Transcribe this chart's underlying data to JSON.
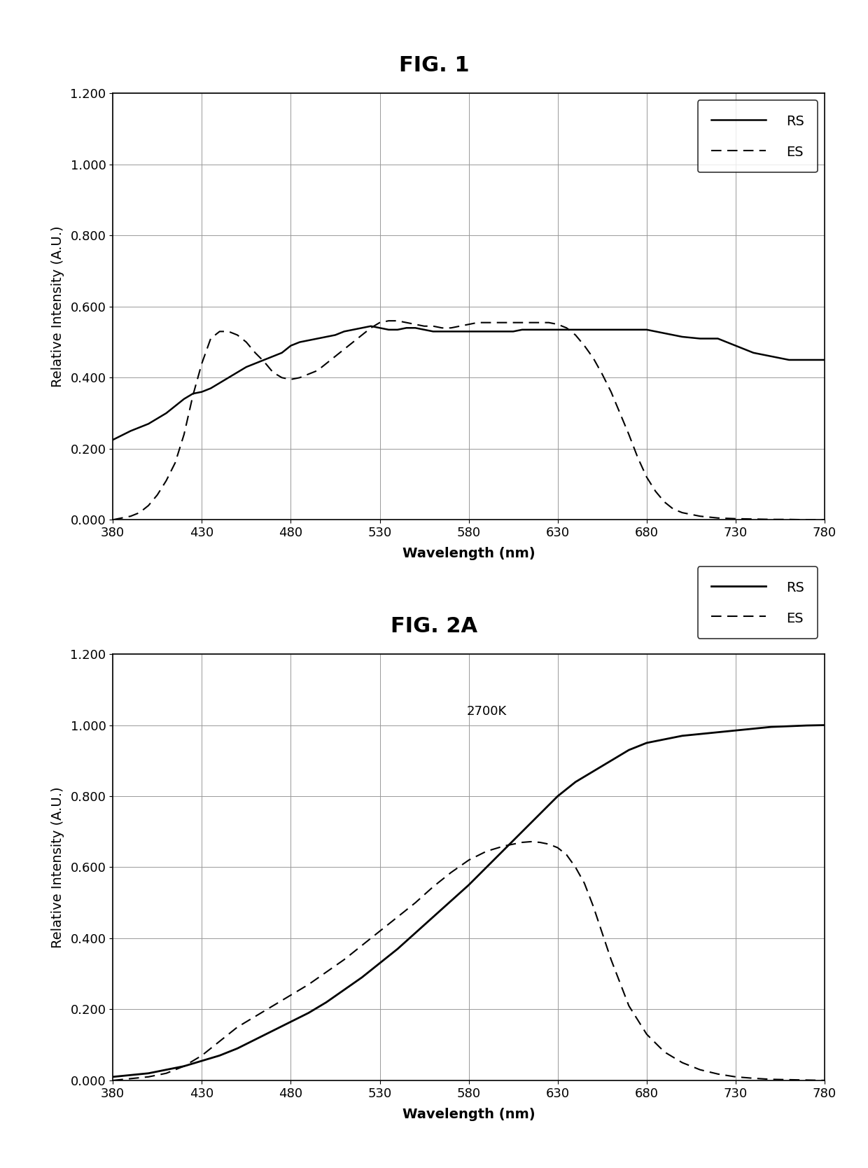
{
  "fig1_title": "FIG. 1",
  "fig2_title": "FIG. 2A",
  "xlabel": "Wavelength (nm)",
  "ylabel": "Relative Intensity (A.U.)",
  "xlim": [
    380,
    780
  ],
  "ylim": [
    0.0,
    1.2
  ],
  "xticks": [
    380,
    430,
    480,
    530,
    580,
    630,
    680,
    730,
    780
  ],
  "yticks": [
    0.0,
    0.2,
    0.4,
    0.6,
    0.8,
    1.0,
    1.2
  ],
  "ytick_labels": [
    "0.000",
    "0.200",
    "0.400",
    "0.600",
    "0.800",
    "1.000",
    "1.200"
  ],
  "fig2_annotation": "2700K",
  "fig1_RS_x": [
    380,
    390,
    400,
    410,
    415,
    420,
    425,
    430,
    435,
    440,
    445,
    450,
    455,
    460,
    465,
    470,
    475,
    480,
    485,
    490,
    495,
    500,
    505,
    510,
    515,
    520,
    525,
    530,
    535,
    540,
    545,
    550,
    555,
    560,
    565,
    570,
    575,
    580,
    585,
    590,
    595,
    600,
    605,
    610,
    615,
    620,
    625,
    630,
    635,
    640,
    645,
    650,
    655,
    660,
    665,
    670,
    675,
    680,
    685,
    690,
    695,
    700,
    710,
    720,
    730,
    735,
    740,
    750,
    760,
    770,
    780
  ],
  "fig1_RS_y": [
    0.225,
    0.25,
    0.27,
    0.3,
    0.32,
    0.34,
    0.355,
    0.36,
    0.37,
    0.385,
    0.4,
    0.415,
    0.43,
    0.44,
    0.45,
    0.46,
    0.47,
    0.49,
    0.5,
    0.505,
    0.51,
    0.515,
    0.52,
    0.53,
    0.535,
    0.54,
    0.545,
    0.54,
    0.535,
    0.535,
    0.54,
    0.54,
    0.535,
    0.53,
    0.53,
    0.53,
    0.53,
    0.53,
    0.53,
    0.53,
    0.53,
    0.53,
    0.53,
    0.535,
    0.535,
    0.535,
    0.535,
    0.535,
    0.535,
    0.535,
    0.535,
    0.535,
    0.535,
    0.535,
    0.535,
    0.535,
    0.535,
    0.535,
    0.53,
    0.525,
    0.52,
    0.515,
    0.51,
    0.51,
    0.49,
    0.48,
    0.47,
    0.46,
    0.45,
    0.45,
    0.45
  ],
  "fig1_ES_x": [
    380,
    390,
    395,
    400,
    405,
    410,
    415,
    420,
    425,
    430,
    435,
    440,
    445,
    450,
    455,
    460,
    465,
    470,
    475,
    480,
    485,
    490,
    495,
    500,
    505,
    510,
    515,
    520,
    525,
    530,
    535,
    540,
    545,
    550,
    555,
    560,
    565,
    570,
    575,
    580,
    585,
    590,
    595,
    600,
    605,
    610,
    615,
    620,
    625,
    630,
    635,
    640,
    645,
    650,
    655,
    660,
    665,
    670,
    675,
    680,
    685,
    690,
    695,
    700,
    710,
    720,
    730,
    740,
    750,
    760,
    770,
    780
  ],
  "fig1_ES_y": [
    0.0,
    0.01,
    0.02,
    0.04,
    0.07,
    0.11,
    0.16,
    0.24,
    0.35,
    0.44,
    0.51,
    0.53,
    0.53,
    0.52,
    0.5,
    0.47,
    0.445,
    0.415,
    0.4,
    0.395,
    0.4,
    0.41,
    0.42,
    0.44,
    0.46,
    0.48,
    0.5,
    0.52,
    0.54,
    0.555,
    0.56,
    0.56,
    0.555,
    0.55,
    0.545,
    0.545,
    0.54,
    0.54,
    0.545,
    0.55,
    0.555,
    0.555,
    0.555,
    0.555,
    0.555,
    0.555,
    0.555,
    0.555,
    0.555,
    0.55,
    0.54,
    0.52,
    0.49,
    0.455,
    0.41,
    0.36,
    0.3,
    0.24,
    0.175,
    0.12,
    0.08,
    0.05,
    0.03,
    0.02,
    0.01,
    0.005,
    0.003,
    0.002,
    0.001,
    0.001,
    0.0,
    0.0
  ],
  "fig2_RS_x": [
    380,
    390,
    400,
    410,
    420,
    430,
    440,
    450,
    460,
    470,
    480,
    490,
    500,
    510,
    520,
    530,
    540,
    550,
    560,
    570,
    580,
    590,
    600,
    610,
    620,
    630,
    640,
    650,
    660,
    670,
    680,
    690,
    700,
    710,
    720,
    730,
    740,
    750,
    760,
    770,
    780
  ],
  "fig2_RS_y": [
    0.01,
    0.015,
    0.02,
    0.03,
    0.04,
    0.055,
    0.07,
    0.09,
    0.115,
    0.14,
    0.165,
    0.19,
    0.22,
    0.255,
    0.29,
    0.33,
    0.37,
    0.415,
    0.46,
    0.505,
    0.55,
    0.6,
    0.65,
    0.7,
    0.75,
    0.8,
    0.84,
    0.87,
    0.9,
    0.93,
    0.95,
    0.96,
    0.97,
    0.975,
    0.98,
    0.985,
    0.99,
    0.995,
    0.997,
    0.999,
    1.0
  ],
  "fig2_ES_x": [
    380,
    390,
    400,
    410,
    415,
    420,
    425,
    430,
    435,
    440,
    445,
    450,
    455,
    460,
    465,
    470,
    475,
    480,
    490,
    500,
    510,
    520,
    530,
    540,
    550,
    560,
    570,
    580,
    590,
    600,
    610,
    615,
    620,
    625,
    630,
    635,
    640,
    645,
    650,
    660,
    670,
    680,
    690,
    700,
    710,
    720,
    730,
    740,
    750,
    760,
    780
  ],
  "fig2_ES_y": [
    0.0,
    0.005,
    0.01,
    0.02,
    0.03,
    0.04,
    0.055,
    0.07,
    0.09,
    0.11,
    0.13,
    0.15,
    0.165,
    0.18,
    0.195,
    0.21,
    0.225,
    0.24,
    0.27,
    0.305,
    0.34,
    0.38,
    0.42,
    0.46,
    0.5,
    0.545,
    0.585,
    0.62,
    0.645,
    0.66,
    0.67,
    0.672,
    0.67,
    0.665,
    0.655,
    0.635,
    0.6,
    0.555,
    0.49,
    0.34,
    0.21,
    0.13,
    0.08,
    0.05,
    0.03,
    0.018,
    0.01,
    0.006,
    0.003,
    0.002,
    0.0
  ],
  "line_color": "#000000",
  "bg_color": "#ffffff",
  "grid_color": "#999999",
  "title_fontsize": 22,
  "label_fontsize": 14,
  "tick_fontsize": 13,
  "legend_fontsize": 14,
  "annotation_fontsize": 13
}
